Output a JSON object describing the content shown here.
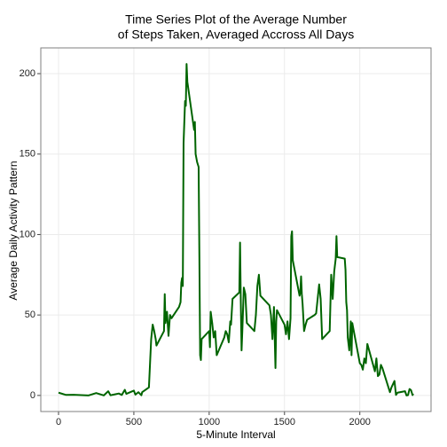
{
  "chart_data": {
    "type": "line",
    "title": [
      "Time Series Plot of the Average Number",
      "of Steps Taken, Averaged Accross All Days"
    ],
    "x_label": "5-Minute Interval",
    "y_label": "Average Daily Activity Pattern",
    "xlim": [
      -117.75,
      2472.75
    ],
    "xticks": [
      0,
      500,
      1000,
      1500,
      2000
    ],
    "ylim": [
      -10,
      216
    ],
    "yticks": [
      0,
      50,
      100,
      150,
      200
    ],
    "grid": true,
    "series": [
      {
        "color": "#006400",
        "x": [
          0,
          50,
          100,
          150,
          200,
          250,
          300,
          330,
          345,
          400,
          420,
          440,
          450,
          500,
          510,
          530,
          550,
          555,
          600,
          615,
          625,
          635,
          645,
          650,
          700,
          705,
          710,
          720,
          730,
          740,
          750,
          800,
          810,
          815,
          820,
          825,
          830,
          835,
          840,
          845,
          850,
          855,
          900,
          905,
          910,
          920,
          930,
          935,
          940,
          945,
          950,
          1000,
          1005,
          1010,
          1020,
          1030,
          1040,
          1050,
          1100,
          1110,
          1120,
          1130,
          1140,
          1145,
          1150,
          1155,
          1200,
          1205,
          1210,
          1215,
          1220,
          1230,
          1240,
          1250,
          1300,
          1310,
          1320,
          1330,
          1340,
          1400,
          1410,
          1420,
          1430,
          1440,
          1445,
          1450,
          1500,
          1510,
          1520,
          1530,
          1540,
          1545,
          1550,
          1555,
          1600,
          1605,
          1610,
          1615,
          1620,
          1630,
          1640,
          1650,
          1700,
          1710,
          1720,
          1730,
          1740,
          1750,
          1800,
          1810,
          1820,
          1830,
          1840,
          1845,
          1850,
          1900,
          1905,
          1910,
          1915,
          1920,
          1930,
          1940,
          1945,
          1950,
          2000,
          2010,
          2020,
          2030,
          2040,
          2050,
          2100,
          2110,
          2120,
          2130,
          2140,
          2150,
          2200,
          2210,
          2220,
          2230,
          2240,
          2250,
          2300,
          2310,
          2320,
          2330,
          2340,
          2350,
          2355
        ],
        "values": [
          1.7,
          0.3,
          0.4,
          0.2,
          0,
          1.5,
          0,
          2.6,
          0.1,
          1.2,
          0.3,
          3.5,
          1,
          3,
          0.5,
          2,
          0.1,
          2,
          5,
          35,
          44,
          40,
          35,
          31,
          40,
          63,
          45,
          52,
          37,
          50,
          48,
          55,
          58,
          70,
          73,
          68,
          157,
          170,
          183,
          180,
          206,
          195,
          165,
          170,
          150,
          145,
          142,
          86,
          25,
          22,
          35,
          40,
          30,
          52,
          45,
          36,
          40,
          25,
          36,
          40,
          38,
          33,
          46,
          44,
          52,
          60,
          64,
          95,
          58,
          28,
          40,
          67,
          63,
          45,
          40,
          50,
          68,
          75,
          62,
          56,
          50,
          35,
          55,
          17,
          46,
          53,
          44,
          38,
          46,
          35,
          48,
          99,
          102,
          84,
          62,
          64,
          74,
          63,
          57,
          40,
          44,
          47,
          50,
          51,
          60,
          69,
          60,
          35,
          40,
          75,
          60,
          77,
          85,
          99,
          86,
          85,
          78,
          58,
          53,
          36,
          28,
          46,
          25,
          45,
          20,
          19,
          16,
          23,
          20,
          32,
          15,
          23,
          12,
          13,
          19,
          17,
          2,
          5,
          7,
          9,
          0.3,
          1.7,
          2.6,
          0,
          0.2,
          4,
          3.3,
          0.2,
          1
        ]
      }
    ]
  }
}
